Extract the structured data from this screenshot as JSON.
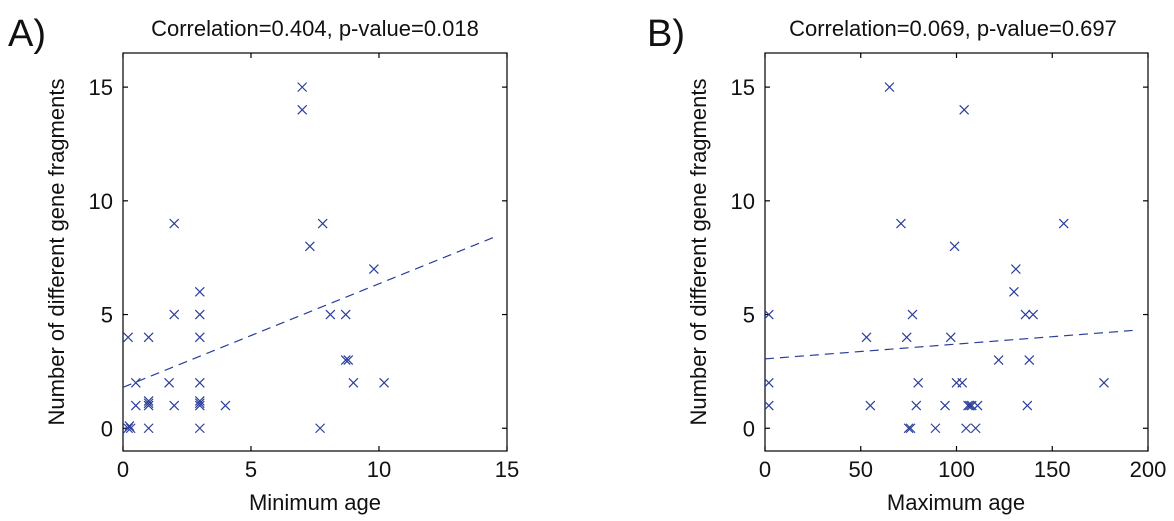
{
  "chart_data": [
    {
      "type": "scatter",
      "panel_label": "A)",
      "title": "Correlation=0.404, p-value=0.018",
      "xlabel": "Minimum age",
      "ylabel": "Number of different gene fragments",
      "xlim": [
        0,
        15
      ],
      "ylim": [
        -1,
        16.5
      ],
      "xticks": [
        0,
        5,
        10,
        15
      ],
      "yticks": [
        0,
        5,
        10,
        15
      ],
      "grid": false,
      "marker": "x",
      "color": "#2b3f9a",
      "points": [
        [
          0.2,
          0
        ],
        [
          0.3,
          0
        ],
        [
          0.25,
          0.1
        ],
        [
          0.2,
          4
        ],
        [
          0.5,
          2
        ],
        [
          0.5,
          1
        ],
        [
          1,
          1
        ],
        [
          1,
          1.2
        ],
        [
          1,
          1.1
        ],
        [
          1,
          4
        ],
        [
          1,
          0
        ],
        [
          1.8,
          2
        ],
        [
          2,
          5
        ],
        [
          2,
          9
        ],
        [
          2,
          1
        ],
        [
          3,
          6
        ],
        [
          3,
          5
        ],
        [
          3,
          4
        ],
        [
          3,
          2
        ],
        [
          3,
          1.2
        ],
        [
          3,
          1
        ],
        [
          3,
          1.1
        ],
        [
          3,
          0
        ],
        [
          4,
          1
        ],
        [
          7,
          15
        ],
        [
          7,
          14
        ],
        [
          7.3,
          8
        ],
        [
          7.7,
          0
        ],
        [
          7.8,
          9
        ],
        [
          8.1,
          5
        ],
        [
          8.7,
          5
        ],
        [
          8.7,
          3
        ],
        [
          8.8,
          3
        ],
        [
          9,
          2
        ],
        [
          9.8,
          7
        ],
        [
          10.2,
          2
        ]
      ],
      "trend": {
        "style": "dashed",
        "x": [
          0,
          14.5
        ],
        "y": [
          1.8,
          8.4
        ]
      }
    },
    {
      "type": "scatter",
      "panel_label": "B)",
      "title": "Correlation=0.069, p-value=0.697",
      "xlabel": "Maximum age",
      "ylabel": "Number of different gene fragments",
      "xlim": [
        0,
        200
      ],
      "ylim": [
        -1,
        16.5
      ],
      "xticks": [
        0,
        50,
        100,
        150,
        200
      ],
      "yticks": [
        0,
        5,
        10,
        15
      ],
      "grid": false,
      "marker": "x",
      "color": "#2b3f9a",
      "points": [
        [
          2,
          5
        ],
        [
          2,
          2
        ],
        [
          2,
          1
        ],
        [
          53,
          4
        ],
        [
          55,
          1
        ],
        [
          65,
          15
        ],
        [
          71,
          9
        ],
        [
          74,
          4
        ],
        [
          75,
          0
        ],
        [
          76,
          0
        ],
        [
          77,
          5
        ],
        [
          79,
          1
        ],
        [
          80,
          2
        ],
        [
          89,
          0
        ],
        [
          94,
          1
        ],
        [
          97,
          4
        ],
        [
          99,
          8
        ],
        [
          100,
          2
        ],
        [
          103,
          2
        ],
        [
          104,
          14
        ],
        [
          105,
          0
        ],
        [
          106,
          1
        ],
        [
          107,
          1
        ],
        [
          108,
          1
        ],
        [
          110,
          0
        ],
        [
          111,
          1
        ],
        [
          122,
          3
        ],
        [
          130,
          6
        ],
        [
          131,
          7
        ],
        [
          136,
          5
        ],
        [
          137,
          1
        ],
        [
          138,
          3
        ],
        [
          140,
          5
        ],
        [
          156,
          9
        ],
        [
          177,
          2
        ]
      ],
      "trend": {
        "style": "dashed",
        "x": [
          0,
          192
        ],
        "y": [
          3.05,
          4.3
        ]
      }
    }
  ]
}
